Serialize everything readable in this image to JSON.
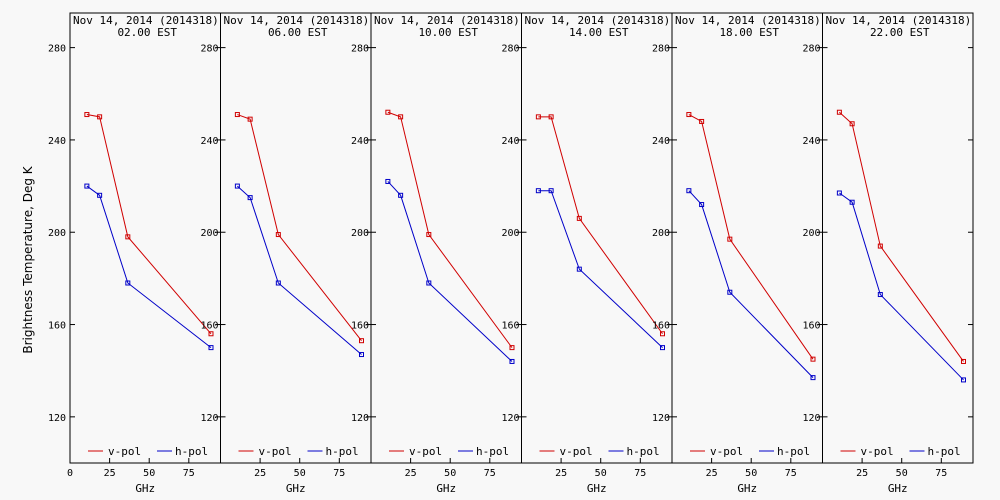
{
  "chart_data": {
    "type": "line",
    "y_axis_label": "Brightness Temperature, Deg K",
    "x_axis_label": "GHz",
    "ylim": [
      100,
      295
    ],
    "xlim": [
      0,
      95
    ],
    "y_ticks": [
      120,
      160,
      200,
      240,
      280
    ],
    "x_ticks": [
      0,
      25,
      50,
      75
    ],
    "x_tick_labels": [
      "0",
      "25",
      "50",
      "75"
    ],
    "panel_x_tick_labels": [
      "25",
      "50",
      "75"
    ],
    "frequencies_ghz": [
      10.65,
      18.7,
      36.5,
      89.0
    ],
    "legend": {
      "v": "v-pol",
      "h": "h-pol"
    },
    "colors": {
      "v": "#d00000",
      "h": "#0000c8",
      "axis": "#000000"
    },
    "panels": [
      {
        "title": "Nov 14, 2014 (2014318)",
        "time": "02.00 EST",
        "v": [
          251,
          250,
          198,
          156
        ],
        "h": [
          220,
          216,
          178,
          150
        ]
      },
      {
        "title": "Nov 14, 2014 (2014318)",
        "time": "06.00 EST",
        "v": [
          251,
          249,
          199,
          153
        ],
        "h": [
          220,
          215,
          178,
          147
        ]
      },
      {
        "title": "Nov 14, 2014 (2014318)",
        "time": "10.00 EST",
        "v": [
          252,
          250,
          199,
          150
        ],
        "h": [
          222,
          216,
          178,
          144
        ]
      },
      {
        "title": "Nov 14, 2014 (2014318)",
        "time": "14.00 EST",
        "v": [
          250,
          250,
          206,
          156
        ],
        "h": [
          218,
          218,
          184,
          150
        ]
      },
      {
        "title": "Nov 14, 2014 (2014318)",
        "time": "18.00 EST",
        "v": [
          251,
          248,
          197,
          145
        ],
        "h": [
          218,
          212,
          174,
          137
        ]
      },
      {
        "title": "Nov 14, 2014 (2014318)",
        "time": "22.00 EST",
        "v": [
          252,
          247,
          194,
          144
        ],
        "h": [
          217,
          213,
          173,
          136
        ]
      }
    ]
  }
}
